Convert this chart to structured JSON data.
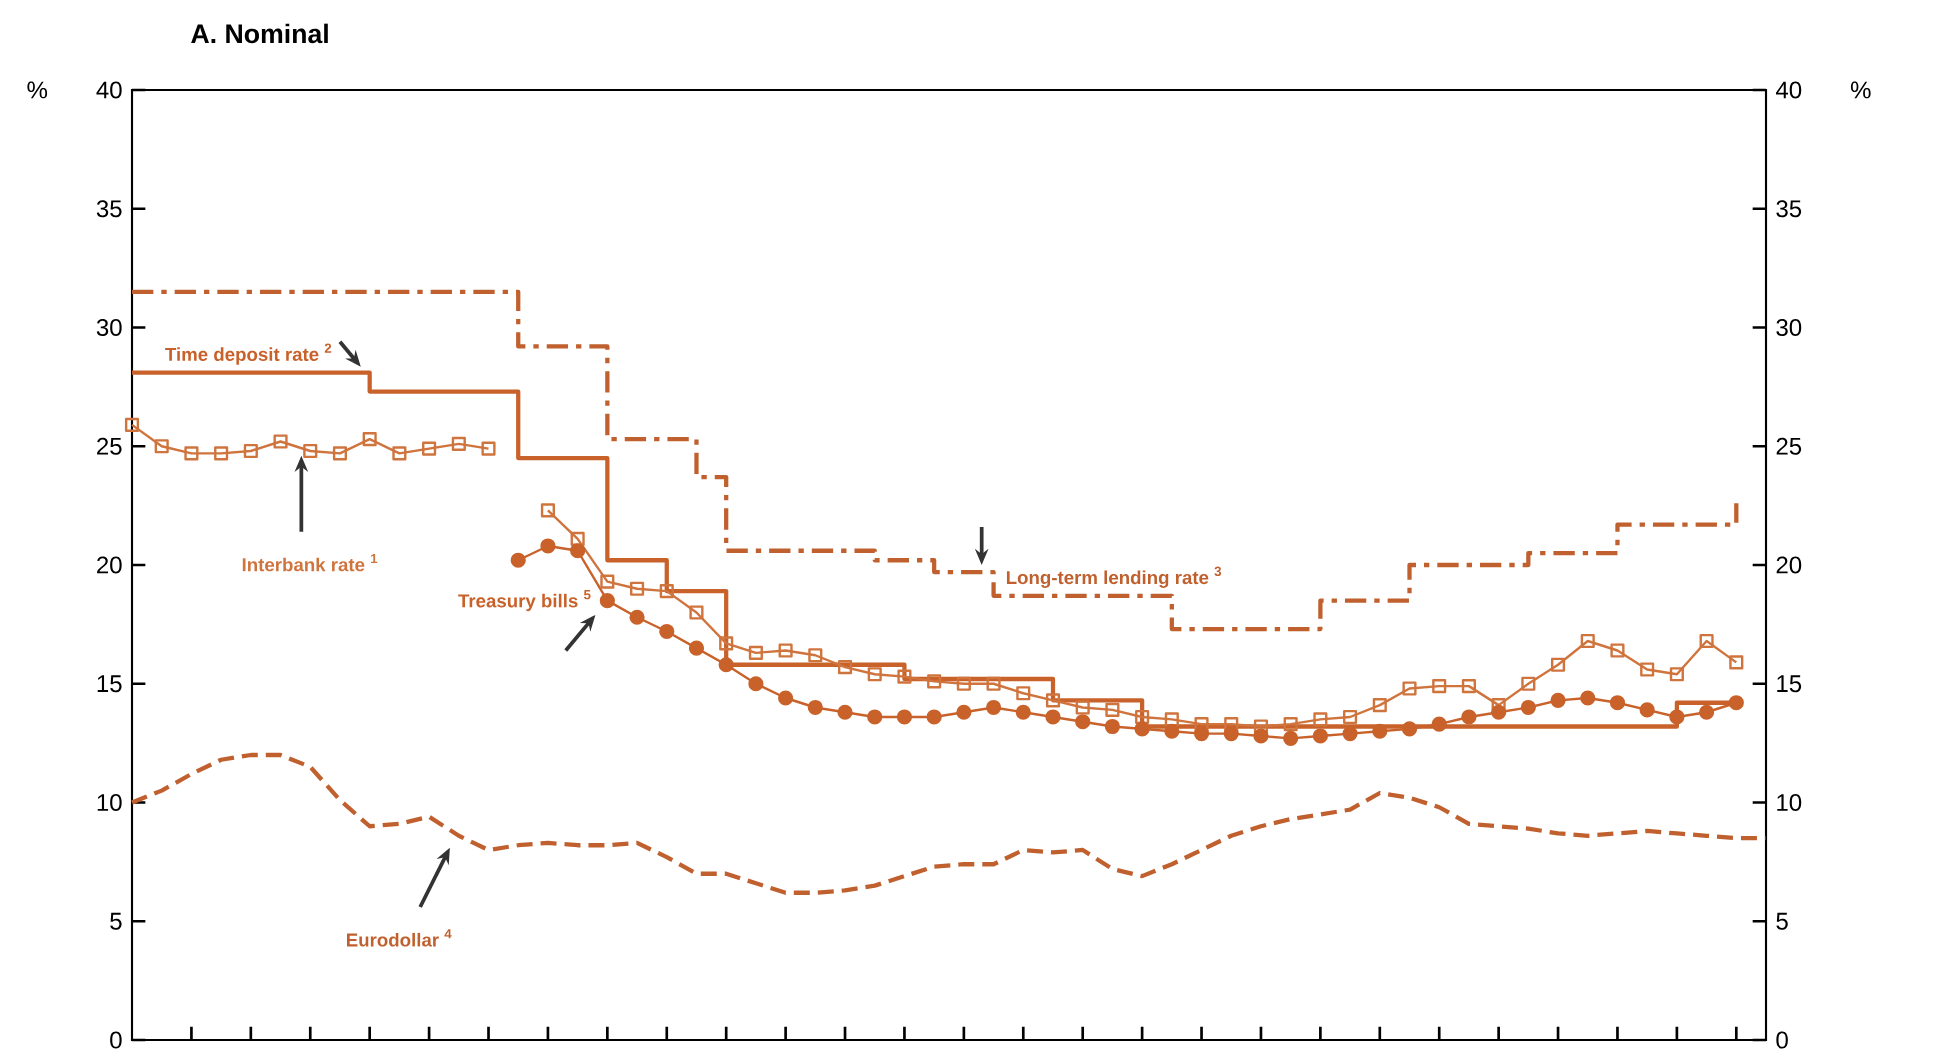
{
  "chart_data": {
    "type": "line",
    "title": "A.  Nominal",
    "ylabel": "%",
    "y2label": "%",
    "categories": [
      null,
      null,
      null,
      null,
      null,
      null,
      null,
      null,
      null,
      null,
      null,
      null,
      null,
      null,
      null,
      null,
      null,
      null,
      null,
      null,
      null,
      null,
      null,
      null,
      null,
      null,
      null,
      null,
      null,
      null,
      null,
      null,
      null,
      null,
      null,
      null,
      null,
      null,
      null,
      null,
      null,
      null,
      null,
      null,
      null,
      null,
      null,
      null,
      null,
      null,
      null,
      null,
      null,
      null,
      null,
      null
    ],
    "ylim": [
      0,
      40
    ],
    "yticks": [
      0,
      5,
      10,
      15,
      20,
      25,
      30,
      35,
      40
    ],
    "y2lim": [
      0,
      40
    ],
    "y2ticks": [
      0,
      5,
      10,
      15,
      20,
      25,
      30,
      35,
      40
    ],
    "legend": false,
    "grid": false,
    "series": [
      {
        "name": "Time deposit rate $^{2}$",
        "type": "step",
        "color": "#c9622a",
        "line_style": "solid",
        "marker": "none",
        "values": [
          28.1,
          28.1,
          28.1,
          28.1,
          28.1,
          28.1,
          28.1,
          28.1,
          27.3,
          27.3,
          27.3,
          27.3,
          27.3,
          24.5,
          24.5,
          24.5,
          20.2,
          20.2,
          18.9,
          18.9,
          15.8,
          15.8,
          15.8,
          15.8,
          15.8,
          15.8,
          15.2,
          15.2,
          15.2,
          15.2,
          15.2,
          14.3,
          14.3,
          14.3,
          13.2,
          13.2,
          13.2,
          13.2,
          13.2,
          13.2,
          13.2,
          13.2,
          13.2,
          13.2,
          13.2,
          13.2,
          13.2,
          13.2,
          13.2,
          13.2,
          13.2,
          13.2,
          14.2,
          14.2,
          14.2,
          null
        ]
      },
      {
        "name": "Long-term lending rate $^{3}$",
        "type": "step",
        "color": "#c0602e",
        "line_style": "dashdot",
        "marker": "none",
        "values": [
          31.5,
          31.5,
          31.5,
          31.5,
          31.5,
          31.5,
          31.5,
          31.5,
          31.5,
          31.5,
          31.5,
          31.5,
          31.5,
          29.2,
          29.2,
          29.2,
          25.3,
          25.3,
          25.3,
          23.7,
          20.6,
          20.6,
          20.6,
          20.6,
          20.6,
          20.2,
          20.2,
          19.7,
          19.7,
          18.7,
          18.7,
          18.7,
          18.7,
          18.7,
          18.7,
          17.3,
          17.3,
          17.3,
          17.3,
          17.3,
          18.5,
          18.5,
          18.5,
          20.0,
          20.0,
          20.0,
          20.0,
          20.5,
          20.5,
          20.5,
          21.7,
          21.7,
          21.7,
          21.7,
          22.6,
          null
        ]
      },
      {
        "name": "Interbank rate $^{1}$",
        "color": "#d0743e",
        "line_style": "solid",
        "marker": "square",
        "values": [
          25.9,
          25.0,
          24.7,
          24.7,
          24.8,
          25.2,
          24.8,
          24.7,
          25.3,
          24.7,
          24.9,
          25.1,
          24.9,
          null,
          22.3,
          21.1,
          19.3,
          19.0,
          18.9,
          18.0,
          16.7,
          16.3,
          16.4,
          16.2,
          15.7,
          15.4,
          15.3,
          15.1,
          15.0,
          15.0,
          14.6,
          14.3,
          14.0,
          13.9,
          13.6,
          13.5,
          13.3,
          13.3,
          13.2,
          13.3,
          13.5,
          13.6,
          14.1,
          14.8,
          14.9,
          14.9,
          14.1,
          15.0,
          15.8,
          16.8,
          16.4,
          15.6,
          15.4,
          16.8,
          15.9,
          null
        ]
      },
      {
        "name": "Treasury bills $^{5}$",
        "color": "#c9622a",
        "line_style": "solid",
        "marker": "circle",
        "values": [
          null,
          null,
          null,
          null,
          null,
          null,
          null,
          null,
          null,
          null,
          null,
          null,
          null,
          20.2,
          20.8,
          20.6,
          18.5,
          17.8,
          17.2,
          16.5,
          15.8,
          15.0,
          14.4,
          14.0,
          13.8,
          13.6,
          13.6,
          13.6,
          13.8,
          14.0,
          13.8,
          13.6,
          13.4,
          13.2,
          13.1,
          13.0,
          12.9,
          12.9,
          12.8,
          12.7,
          12.8,
          12.9,
          13.0,
          13.1,
          13.3,
          13.6,
          13.8,
          14.0,
          14.3,
          14.4,
          14.2,
          13.9,
          13.6,
          13.8,
          14.2,
          null
        ]
      },
      {
        "name": "Eurodollar $^{4}$",
        "color": "#c0602e",
        "line_style": "dashed",
        "marker": "none",
        "values": [
          10.0,
          10.5,
          11.2,
          11.8,
          12.0,
          12.0,
          11.5,
          10.1,
          9.0,
          9.1,
          9.4,
          8.6,
          8.0,
          8.2,
          8.3,
          8.2,
          8.2,
          8.3,
          7.7,
          7.0,
          7.0,
          6.6,
          6.2,
          6.2,
          6.3,
          6.5,
          6.9,
          7.3,
          7.4,
          7.4,
          8.0,
          7.9,
          8.0,
          7.2,
          6.9,
          7.4,
          8.0,
          8.6,
          9.0,
          9.3,
          9.5,
          9.7,
          10.4,
          10.2,
          9.8,
          9.1,
          9.0,
          8.9,
          8.7,
          8.6,
          8.7,
          8.8,
          8.7,
          8.6,
          8.5,
          8.5
        ]
      }
    ]
  }
}
